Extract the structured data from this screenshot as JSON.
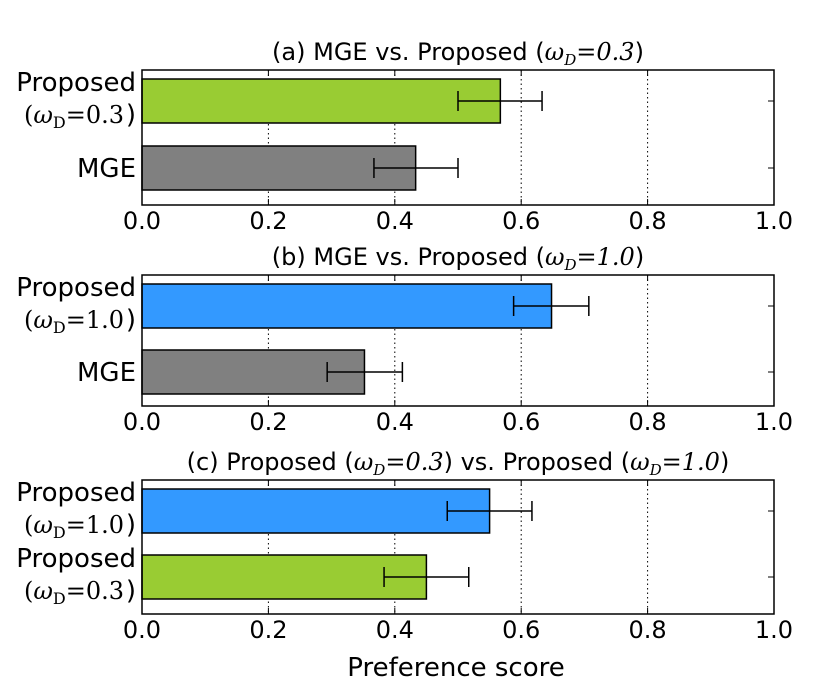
{
  "chart_data": [
    {
      "type": "bar",
      "orientation": "horizontal",
      "title_prefix": "(a) MGE vs. Proposed (",
      "title_param": "ω",
      "title_sub": "D",
      "title_value": "=0.3",
      "title_suffix": ")",
      "xlim": [
        0.0,
        1.0
      ],
      "xticks": [
        "0.0",
        "0.2",
        "0.4",
        "0.6",
        "0.8",
        "1.0"
      ],
      "xtick_values": [
        0.0,
        0.2,
        0.4,
        0.6,
        0.8,
        1.0
      ],
      "grid": "dotted vertical",
      "bars": [
        {
          "name": "Proposed",
          "sub_param": "ω",
          "sub_index": "D",
          "sub_value": "=0.3",
          "value": 0.567,
          "err_low": 0.5,
          "err_high": 0.633,
          "color": "#99cc33"
        },
        {
          "name": "MGE",
          "value": 0.433,
          "err_low": 0.367,
          "err_high": 0.5,
          "color": "#808080"
        }
      ]
    },
    {
      "type": "bar",
      "orientation": "horizontal",
      "title_prefix": "(b) MGE vs. Proposed (",
      "title_param": "ω",
      "title_sub": "D",
      "title_value": "=1.0",
      "title_suffix": ")",
      "xlim": [
        0.0,
        1.0
      ],
      "xticks": [
        "0.0",
        "0.2",
        "0.4",
        "0.6",
        "0.8",
        "1.0"
      ],
      "xtick_values": [
        0.0,
        0.2,
        0.4,
        0.6,
        0.8,
        1.0
      ],
      "grid": "dotted vertical",
      "bars": [
        {
          "name": "Proposed",
          "sub_param": "ω",
          "sub_index": "D",
          "sub_value": "=1.0",
          "value": 0.648,
          "err_low": 0.588,
          "err_high": 0.707,
          "color": "#3399ff"
        },
        {
          "name": "MGE",
          "value": 0.352,
          "err_low": 0.293,
          "err_high": 0.412,
          "color": "#808080"
        }
      ]
    },
    {
      "type": "bar",
      "orientation": "horizontal",
      "title_prefix": "(c) Proposed (",
      "title_param": "ω",
      "title_sub": "D",
      "title_value": "=0.3",
      "title_mid": ") vs. Proposed (",
      "title_param2": "ω",
      "title_sub2": "D",
      "title_value2": "=1.0",
      "title_suffix": ")",
      "xlim": [
        0.0,
        1.0
      ],
      "xticks": [
        "0.0",
        "0.2",
        "0.4",
        "0.6",
        "0.8",
        "1.0"
      ],
      "xtick_values": [
        0.0,
        0.2,
        0.4,
        0.6,
        0.8,
        1.0
      ],
      "grid": "dotted vertical",
      "bars": [
        {
          "name": "Proposed",
          "sub_param": "ω",
          "sub_index": "D",
          "sub_value": "=1.0",
          "value": 0.55,
          "err_low": 0.483,
          "err_high": 0.617,
          "color": "#3399ff"
        },
        {
          "name": "Proposed",
          "sub_param": "ω",
          "sub_index": "D",
          "sub_value": "=0.3",
          "value": 0.45,
          "err_low": 0.383,
          "err_high": 0.517,
          "color": "#99cc33"
        }
      ]
    }
  ],
  "xlabel": "Preference score"
}
